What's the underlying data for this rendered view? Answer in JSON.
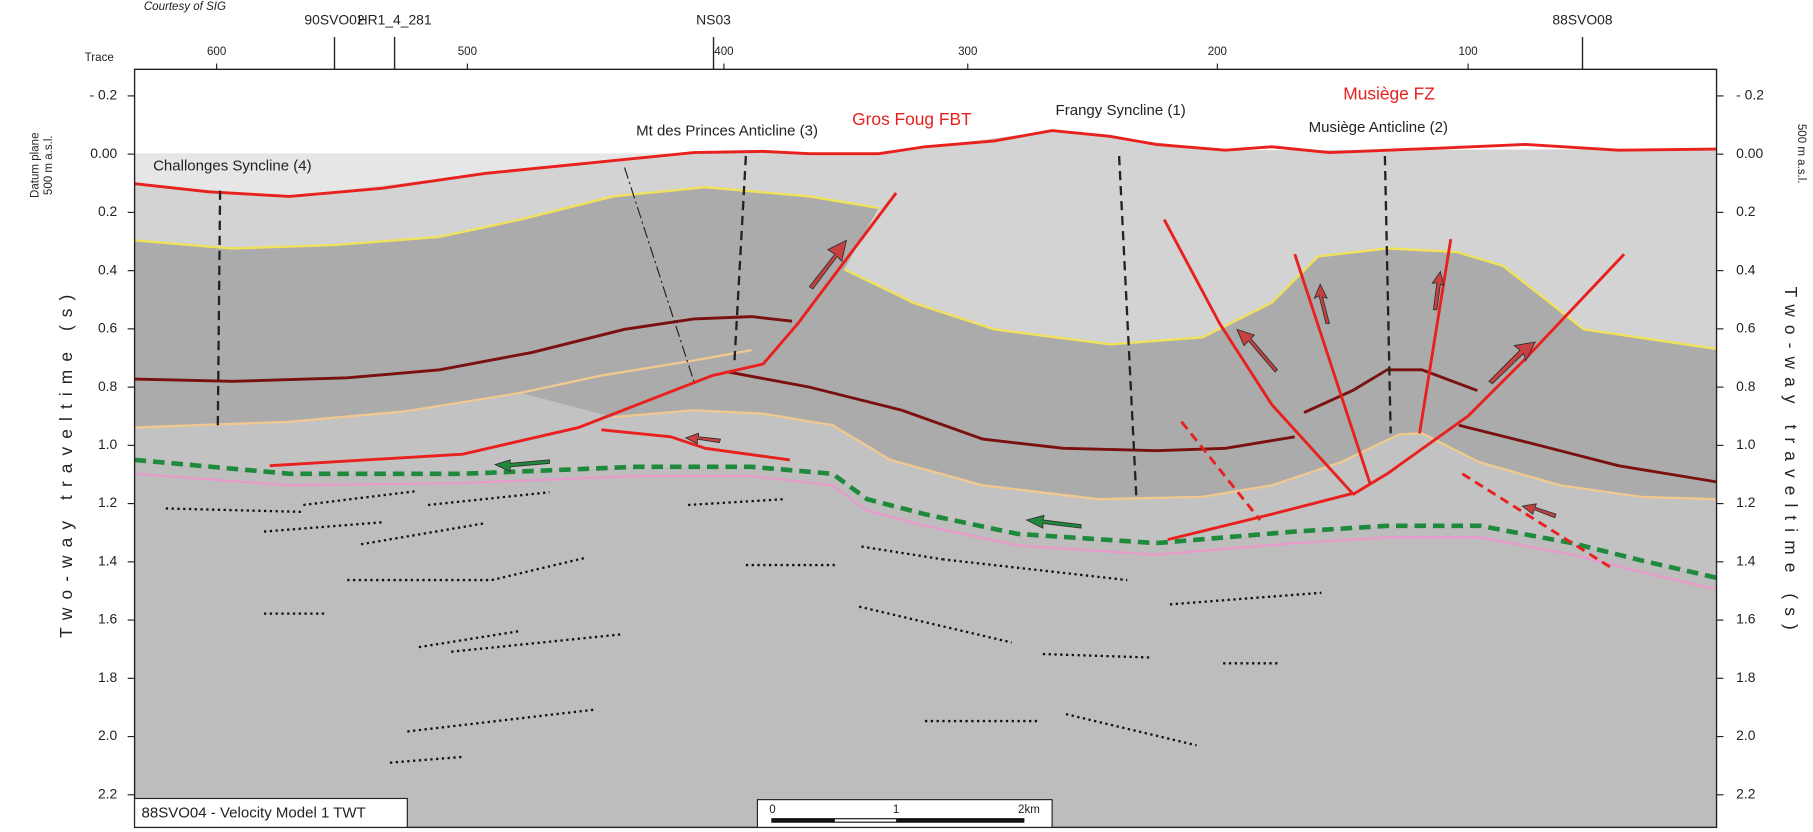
{
  "courtesy": "Courtesy of SIG",
  "wells": [
    "90SVO02",
    "HR1_4_281",
    "NS03",
    "88SVO08"
  ],
  "trace_axis": {
    "label": "Trace",
    "ticks": [
      "600",
      "500",
      "400",
      "300",
      "200",
      "100"
    ]
  },
  "y_axis": {
    "title": "Two-way traveltime (s)",
    "datum_label": [
      "Datum plane",
      "500 m a.s.l."
    ],
    "right_datum_label": "500 m a.s.l.",
    "ticks": [
      "- 0.2",
      "0.00",
      "0.2",
      "0.4",
      "0.6",
      "0.8",
      "1.0",
      "1.2",
      "1.4",
      "1.6",
      "1.8",
      "2.0",
      "2.2"
    ]
  },
  "annotations": {
    "challonges": "Challonges Syncline (4)",
    "mt_des_princes": "Mt des Princes Anticline (3)",
    "gros_foug": "Gros Foug FBT",
    "frangy": "Frangy Syncline (1)",
    "musiege_fz": "Musiège FZ",
    "musiege_anticline": "Musiège Anticline (2)"
  },
  "panel_label": "88SVO04 - Velocity Model 1 TWT",
  "scale_bar": [
    "0",
    "1",
    "2km"
  ]
}
